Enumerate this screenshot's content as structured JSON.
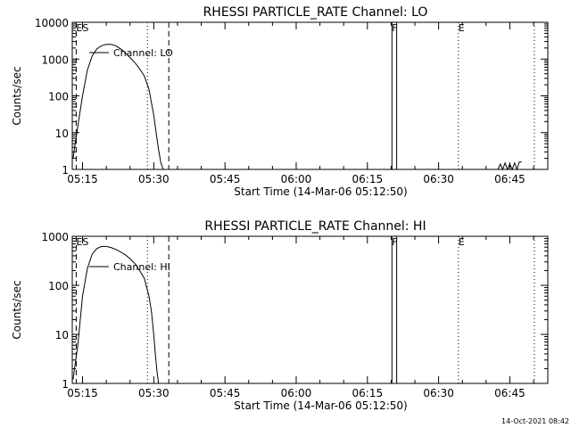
{
  "chart_data": [
    {
      "type": "line",
      "title": "RHESSI PARTICLE_RATE Channel: LO",
      "xlabel": "Start Time (14-Mar-06 05:12:50)",
      "ylabel": "Counts/sec",
      "y_scale": "log",
      "ylim": [
        1,
        10000
      ],
      "y_ticks": [
        1,
        10,
        100,
        1000,
        10000
      ],
      "y_tick_labels": [
        "1",
        "10",
        "100",
        "1000",
        "10000"
      ],
      "xlim": [
        "05:12:50",
        "06:53:00"
      ],
      "x_ticks": [
        "05:15",
        "05:30",
        "05:45",
        "06:00",
        "06:15",
        "06:30",
        "06:45"
      ],
      "legend": "Channel: LO",
      "grid": false,
      "series": [
        {
          "name": "Channel: LO",
          "x": [
            "05:13:00",
            "05:14:00",
            "05:15:00",
            "05:16:00",
            "05:17:00",
            "05:18:00",
            "05:19:00",
            "05:20:00",
            "05:21:00",
            "05:22:00",
            "05:23:00",
            "05:24:00",
            "05:25:00",
            "05:26:00",
            "05:27:00",
            "05:28:00",
            "05:29:00",
            "05:30:00",
            "05:30:30",
            "05:31:00",
            "05:31:30",
            "05:32:00"
          ],
          "y": [
            2,
            15,
            100,
            500,
            1200,
            1900,
            2300,
            2500,
            2500,
            2300,
            1900,
            1500,
            1100,
            800,
            550,
            350,
            150,
            30,
            10,
            3.5,
            1.5,
            1
          ]
        },
        {
          "name": "",
          "x": [
            "06:42:30",
            "06:43:00",
            "06:43:30",
            "06:44:00",
            "06:44:30",
            "06:45:00",
            "06:45:30",
            "06:46:00",
            "06:46:30",
            "06:47:00",
            "06:47:30"
          ],
          "y": [
            1,
            1.4,
            1,
            1.5,
            1,
            1.4,
            1,
            1.5,
            1,
            1.6,
            1.6
          ]
        }
      ],
      "markers": [
        {
          "time": "05:13:40",
          "label": "ES",
          "style": "dashed"
        },
        {
          "time": "05:28:40",
          "label": "",
          "style": "dotted"
        },
        {
          "time": "05:33:10",
          "label": "",
          "style": "dashed"
        },
        {
          "time": "06:20:10",
          "label": "F",
          "style": "solid"
        },
        {
          "time": "06:21:10",
          "label": "",
          "style": "solid"
        },
        {
          "time": "06:34:10",
          "label": "E",
          "style": "dotted"
        },
        {
          "time": "06:50:10",
          "label": "",
          "style": "dotted"
        }
      ]
    },
    {
      "type": "line",
      "title": "RHESSI PARTICLE_RATE Channel: HI",
      "xlabel": "Start Time (14-Mar-06 05:12:50)",
      "ylabel": "Counts/sec",
      "y_scale": "log",
      "ylim": [
        1,
        1000
      ],
      "y_ticks": [
        1,
        10,
        100,
        1000
      ],
      "y_tick_labels": [
        "1",
        "10",
        "100",
        "1000"
      ],
      "xlim": [
        "05:12:50",
        "06:53:00"
      ],
      "x_ticks": [
        "05:15",
        "05:30",
        "05:45",
        "06:00",
        "06:15",
        "06:30",
        "06:45"
      ],
      "legend": "Channel: HI",
      "grid": false,
      "series": [
        {
          "name": "Channel: HI",
          "x": [
            "05:13:00",
            "05:14:00",
            "05:15:00",
            "05:16:00",
            "05:17:00",
            "05:18:00",
            "05:19:00",
            "05:20:00",
            "05:21:00",
            "05:22:00",
            "05:23:00",
            "05:24:00",
            "05:25:00",
            "05:26:00",
            "05:27:00",
            "05:28:00",
            "05:29:00",
            "05:29:30",
            "05:30:00",
            "05:30:20",
            "05:30:40",
            "05:31:00"
          ],
          "y": [
            1.2,
            6,
            60,
            220,
            430,
            560,
            620,
            620,
            590,
            540,
            480,
            420,
            350,
            280,
            200,
            140,
            60,
            30,
            10,
            4,
            1.8,
            1
          ]
        }
      ],
      "markers": [
        {
          "time": "05:13:40",
          "label": "ES",
          "style": "dashed"
        },
        {
          "time": "05:28:40",
          "label": "",
          "style": "dotted"
        },
        {
          "time": "05:33:10",
          "label": "",
          "style": "dashed"
        },
        {
          "time": "06:20:10",
          "label": "F",
          "style": "solid"
        },
        {
          "time": "06:21:10",
          "label": "",
          "style": "solid"
        },
        {
          "time": "06:34:10",
          "label": "E",
          "style": "dotted"
        },
        {
          "time": "06:50:10",
          "label": "",
          "style": "dotted"
        }
      ]
    }
  ],
  "footer": {
    "timestamp": "14-Oct-2021 08:42"
  }
}
